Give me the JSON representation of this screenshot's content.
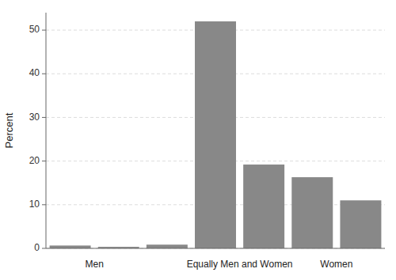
{
  "chart_data": {
    "type": "bar",
    "ylabel": "Percent",
    "categories": [
      null,
      null,
      null,
      null,
      null,
      null,
      null
    ],
    "values": [
      0.65,
      0.35,
      0.85,
      52.0,
      19.2,
      16.3,
      11.0
    ],
    "color": "#888888",
    "ylim": [
      0,
      54
    ],
    "yticks": [
      0,
      10,
      20,
      30,
      40,
      50
    ],
    "grid": true,
    "annotations": [
      "Men",
      "Equally Men and Women",
      "Women"
    ]
  }
}
